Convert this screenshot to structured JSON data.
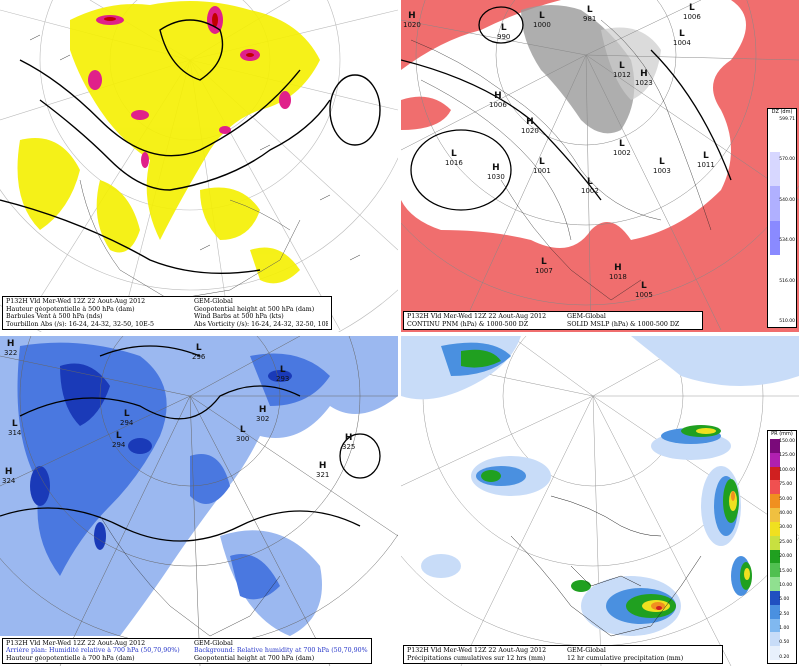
{
  "panels": {
    "tl": {
      "caption": [
        [
          "P132H Vld Mer-Wed 12Z 22 Aout-Aug 2012",
          "GEM-Global"
        ],
        [
          "Hauteur géopotentielle à 500 hPa (dam)",
          "Geopotential height at 500 hPa (dam)"
        ],
        [
          "Barbules Vent à 500 hPa (nds)",
          "Wind Barbs at 500 hPa (kts)"
        ],
        [
          "Tourbillon Abs (/s):  16-24,  24-32,  32-50,  10E-5",
          "Abs Vorticity (/s):  16-24,  24-32,  32-50,  10E-5"
        ]
      ],
      "colors": {
        "low": "#f5f000",
        "mid": "#e0208a",
        "high": "#c00000"
      }
    },
    "tr": {
      "caption": [
        [
          "P132H Vld Mer-Wed 12Z 22 Aout-Aug 2012",
          "GEM-Global"
        ],
        [
          "CONTINU PNM (hPa) & 1000-500 DZ",
          "SOLID  MSLP (hPa) & 1000-500 DZ"
        ]
      ],
      "pressure_labels": [
        {
          "letter": "H",
          "value": "1020"
        },
        {
          "letter": "L",
          "value": "990"
        },
        {
          "letter": "L",
          "value": "1000"
        },
        {
          "letter": "L",
          "value": "981"
        },
        {
          "letter": "L",
          "value": "1006"
        },
        {
          "letter": "L",
          "value": "1004"
        },
        {
          "letter": "H",
          "value": "1006"
        },
        {
          "letter": "L",
          "value": "1012"
        },
        {
          "letter": "H",
          "value": "1023"
        },
        {
          "letter": "H",
          "value": "1020"
        },
        {
          "letter": "L",
          "value": "1016"
        },
        {
          "letter": "H",
          "value": "1030"
        },
        {
          "letter": "L",
          "value": "1002"
        },
        {
          "letter": "L",
          "value": "1001"
        },
        {
          "letter": "L",
          "value": "1003"
        },
        {
          "letter": "L",
          "value": "1011"
        },
        {
          "letter": "L",
          "value": "1002"
        },
        {
          "letter": "L",
          "value": "1007"
        },
        {
          "letter": "H",
          "value": "1018"
        },
        {
          "letter": "L",
          "value": "1005"
        }
      ],
      "colorbar": {
        "title": "DZ (dm)",
        "ticks": [
          "599.71",
          "570.00",
          "540.00",
          "534.00",
          "516.00",
          "510.00"
        ]
      },
      "colors": {
        "warm": "#f06e6e",
        "cold": "#9a9a9a"
      }
    },
    "bl": {
      "caption": [
        [
          "P132H Vld Mer-Wed 12Z 22 Aout-Aug 2012",
          "GEM-Global"
        ],
        [
          "Arrière plan: Humidité relative à 700 hPa (50,70,90%)",
          "Background: Relative humidity at 700 hPa (50,70,90%)"
        ],
        [
          "Hauteur géopotentielle à 700 hPa (dam)",
          "Geopotential height at 700 hPa (dam)"
        ]
      ],
      "height_labels": [
        {
          "letter": "H",
          "value": "322"
        },
        {
          "letter": "L",
          "value": "296"
        },
        {
          "letter": "L",
          "value": "293"
        },
        {
          "letter": "L",
          "value": "314"
        },
        {
          "letter": "L",
          "value": "294"
        },
        {
          "letter": "L",
          "value": "294"
        },
        {
          "letter": "L",
          "value": "300"
        },
        {
          "letter": "H",
          "value": "302"
        },
        {
          "letter": "H",
          "value": "325"
        },
        {
          "letter": "H",
          "value": "324"
        },
        {
          "letter": "H",
          "value": "321"
        }
      ],
      "colors": {
        "rh50": "#9bb8f0",
        "rh70": "#4a78e0",
        "rh90": "#1a3ab8"
      }
    },
    "br": {
      "caption": [
        [
          "P132H Vld Mer-Wed 12Z 22 Aout-Aug 2012",
          "GEM-Global"
        ],
        [
          "Précipitations cumulatives sur 12 hrs (mm)",
          "12 hr cumulative precipitation   (mm)"
        ]
      ],
      "colorbar": {
        "title": "PR (mm)",
        "ticks": [
          "150.00",
          "125.00",
          "100.00",
          "75.00",
          "50.00",
          "40.00",
          "30.00",
          "25.00",
          "20.00",
          "15.00",
          "10.00",
          "5.00",
          "2.50",
          "1.00",
          "0.50",
          "0.20"
        ]
      },
      "colors": {
        "light": "#c8dcf8",
        "blue": "#4a90e0",
        "green": "#20a020",
        "yellow": "#f0e020",
        "orange": "#f09020",
        "red": "#d02020"
      }
    }
  }
}
